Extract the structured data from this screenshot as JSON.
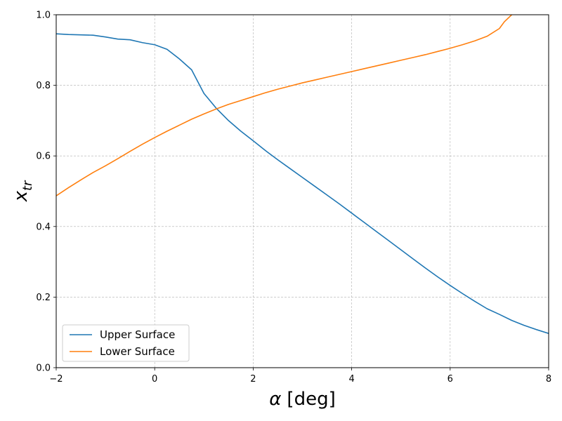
{
  "chart_data": {
    "type": "line",
    "title": "",
    "xlabel_symbol": "α",
    "xlabel_unit": "[deg]",
    "ylabel_main": "x",
    "ylabel_sub": "tr",
    "xlim": [
      -2,
      8
    ],
    "ylim": [
      0,
      1
    ],
    "xticks": [
      -2,
      0,
      2,
      4,
      6,
      8
    ],
    "yticks": [
      0.0,
      0.2,
      0.4,
      0.6,
      0.8,
      1.0
    ],
    "xtick_labels": [
      "−2",
      "0",
      "2",
      "4",
      "6",
      "8"
    ],
    "ytick_labels": [
      "0.0",
      "0.2",
      "0.4",
      "0.6",
      "0.8",
      "1.0"
    ],
    "grid": true,
    "legend_position": "lower-left",
    "series": [
      {
        "name": "Upper Surface",
        "color": "#1f77b4",
        "x": [
          -2.0,
          -1.75,
          -1.5,
          -1.25,
          -1.0,
          -0.75,
          -0.5,
          -0.25,
          0.0,
          0.25,
          0.5,
          0.75,
          1.0,
          1.25,
          1.5,
          1.75,
          2.0,
          2.25,
          2.5,
          2.75,
          3.0,
          3.25,
          3.5,
          3.75,
          4.0,
          4.25,
          4.5,
          4.75,
          5.0,
          5.25,
          5.5,
          5.75,
          6.0,
          6.25,
          6.5,
          6.75,
          7.0,
          7.25,
          7.5,
          7.75,
          8.0
        ],
        "y": [
          0.946,
          0.944,
          0.943,
          0.942,
          0.937,
          0.931,
          0.929,
          0.921,
          0.915,
          0.902,
          0.875,
          0.844,
          0.777,
          0.735,
          0.7,
          0.67,
          0.643,
          0.615,
          0.589,
          0.564,
          0.539,
          0.514,
          0.489,
          0.464,
          0.438,
          0.412,
          0.386,
          0.36,
          0.334,
          0.308,
          0.282,
          0.257,
          0.233,
          0.21,
          0.188,
          0.167,
          0.151,
          0.134,
          0.12,
          0.108,
          0.097
        ]
      },
      {
        "name": "Lower Surface",
        "color": "#ff7f0e",
        "x": [
          -2.0,
          -1.75,
          -1.5,
          -1.25,
          -1.0,
          -0.75,
          -0.5,
          -0.25,
          0.0,
          0.25,
          0.5,
          0.75,
          1.0,
          1.25,
          1.5,
          1.75,
          2.0,
          2.25,
          2.5,
          2.75,
          3.0,
          3.25,
          3.5,
          3.75,
          4.0,
          4.25,
          4.5,
          4.75,
          5.0,
          5.25,
          5.5,
          5.75,
          6.0,
          6.25,
          6.5,
          6.75,
          7.0,
          7.1,
          7.25
        ],
        "y": [
          0.487,
          0.51,
          0.532,
          0.553,
          0.572,
          0.592,
          0.613,
          0.633,
          0.652,
          0.67,
          0.687,
          0.704,
          0.719,
          0.733,
          0.746,
          0.757,
          0.768,
          0.779,
          0.789,
          0.798,
          0.807,
          0.815,
          0.823,
          0.831,
          0.839,
          0.847,
          0.855,
          0.863,
          0.871,
          0.879,
          0.887,
          0.896,
          0.905,
          0.915,
          0.926,
          0.939,
          0.961,
          0.98,
          1.0
        ]
      }
    ]
  }
}
